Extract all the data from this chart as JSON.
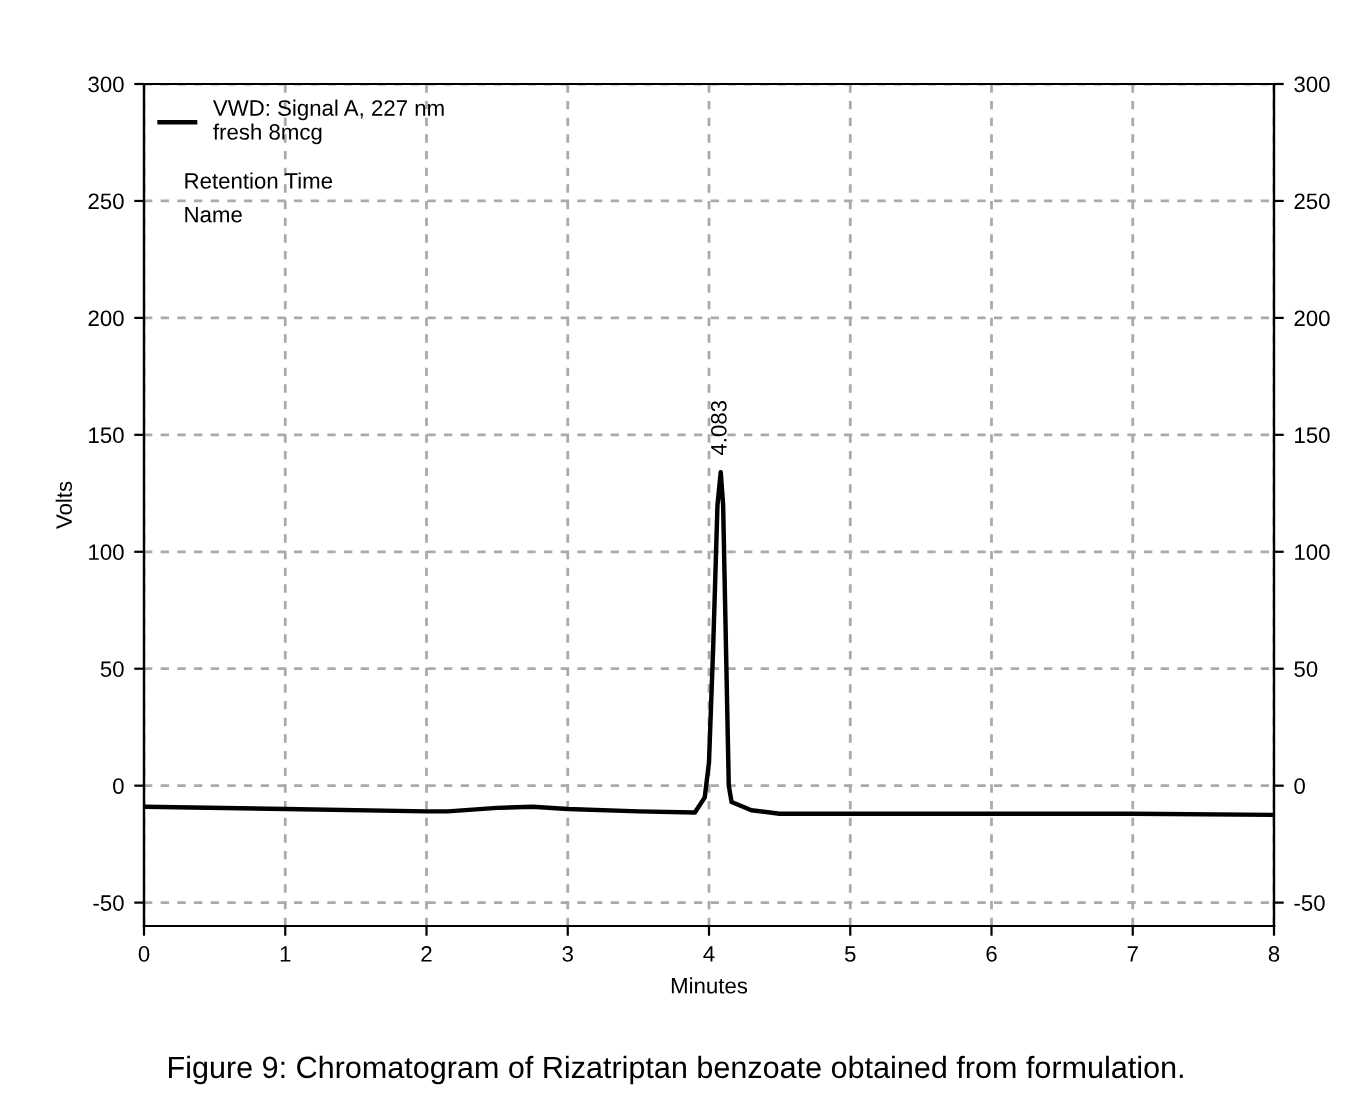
{
  "chart_data": {
    "type": "line",
    "xlabel": "Minutes",
    "ylabel": "Volts",
    "x": [
      0,
      1,
      2,
      2.15,
      2.5,
      2.75,
      3,
      3.5,
      3.9,
      3.97,
      4.0,
      4.03,
      4.06,
      4.083,
      4.1,
      4.12,
      4.14,
      4.16,
      4.3,
      4.5,
      5,
      6,
      7,
      8
    ],
    "series": [
      {
        "name": "VWD: Signal A, 227 nm\nfresh 8mcg",
        "color": "#000000",
        "values": [
          -9,
          -10,
          -11,
          -11,
          -9.5,
          -9,
          -10,
          -11,
          -11.5,
          -5,
          10,
          60,
          120,
          134,
          120,
          60,
          0,
          -7,
          -10.5,
          -12,
          -12,
          -12,
          -12,
          -12.5
        ]
      }
    ],
    "xlim": [
      0,
      8
    ],
    "xticks": [
      0,
      1,
      2,
      3,
      4,
      5,
      6,
      7,
      8
    ],
    "ylim": [
      -60,
      300
    ],
    "yticks": [
      -50,
      0,
      50,
      100,
      150,
      200,
      250,
      300
    ],
    "y2lim": [
      -60,
      300
    ],
    "y2ticks": [
      -50,
      0,
      50,
      100,
      150,
      200,
      250,
      300
    ],
    "grid": true,
    "legend": "top left",
    "annotations": [
      "Retention Time",
      "Name",
      {
        "text": "4.083",
        "x": 4.083,
        "y": 134
      },
      "Figure 9: Chromatogram of Rizatriptan benzoate obtained from formulation."
    ]
  }
}
